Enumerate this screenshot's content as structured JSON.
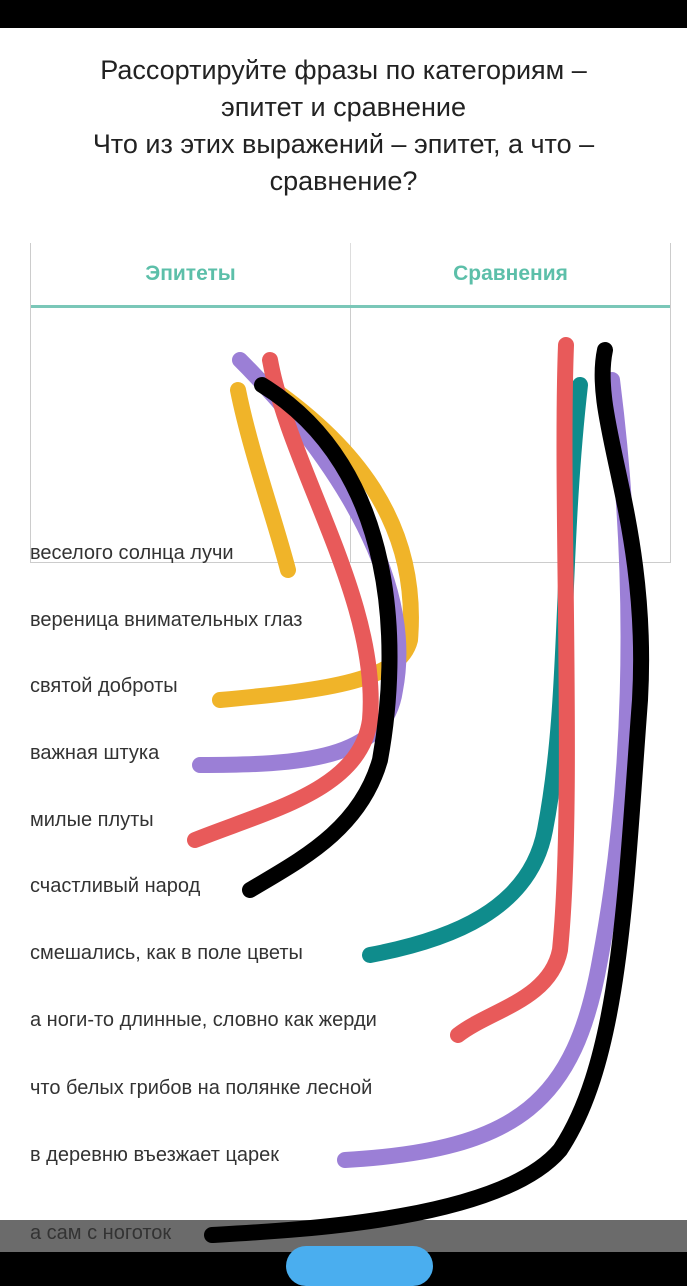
{
  "title": {
    "line1": "Рассортируйте фразы по категориям –",
    "line2": "эпитет и сравнение",
    "line3": "Что из этих выражений – эпитет, а что –",
    "line4": "сравнение?"
  },
  "table": {
    "columns": [
      "Эпитеты",
      "Сравнения"
    ]
  },
  "phrases": [
    "веселого солнца лучи",
    "вереница внимательных глаз",
    "святой доброты",
    "важная штука",
    "милые плуты",
    "счастливый народ",
    "смешались, как в поле цветы",
    "а ноги-то длинные, словно как жерди",
    "что белых грибов на полянке лесной",
    "в деревню въезжает царек",
    "а сам с ноготок"
  ],
  "colors": {
    "accent": "#5cbfa9",
    "yellow": "#f0b429",
    "purple": "#9b7fd6",
    "red": "#e85a5a",
    "black": "#000000",
    "teal": "#0f8c8c",
    "button": "#4aaeef"
  }
}
